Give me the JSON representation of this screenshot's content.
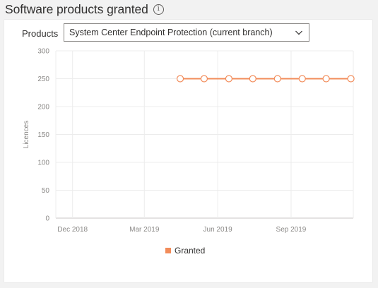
{
  "header": {
    "title": "Software products granted",
    "info_icon": "info-circle-icon"
  },
  "filter": {
    "label": "Products",
    "selected": "System Center Endpoint Protection (current branch)",
    "chevron_icon": "chevron-down-icon"
  },
  "chart_data": {
    "type": "line",
    "title": "",
    "xlabel": "",
    "ylabel": "Licences",
    "ylim": [
      0,
      300
    ],
    "yticks": [
      0,
      50,
      100,
      150,
      200,
      250,
      300
    ],
    "xlim": [
      "2018-11-10",
      "2019-11-18"
    ],
    "xticks": [
      {
        "label": "Dec 2018",
        "date": "2018-12-01"
      },
      {
        "label": "Mar 2019",
        "date": "2019-03-01"
      },
      {
        "label": "Jun 2019",
        "date": "2019-06-01"
      },
      {
        "label": "Sep 2019",
        "date": "2019-09-01"
      }
    ],
    "grid": true,
    "legend_position": "bottom",
    "series": [
      {
        "name": "Granted",
        "color": "#f28c5a",
        "marker": "hollow-circle",
        "points": [
          {
            "x": "2019-04-15",
            "y": 250
          },
          {
            "x": "2019-05-15",
            "y": 250
          },
          {
            "x": "2019-06-15",
            "y": 250
          },
          {
            "x": "2019-07-15",
            "y": 250
          },
          {
            "x": "2019-08-15",
            "y": 250
          },
          {
            "x": "2019-09-15",
            "y": 250
          },
          {
            "x": "2019-10-15",
            "y": 250
          },
          {
            "x": "2019-11-15",
            "y": 250
          }
        ]
      }
    ]
  }
}
